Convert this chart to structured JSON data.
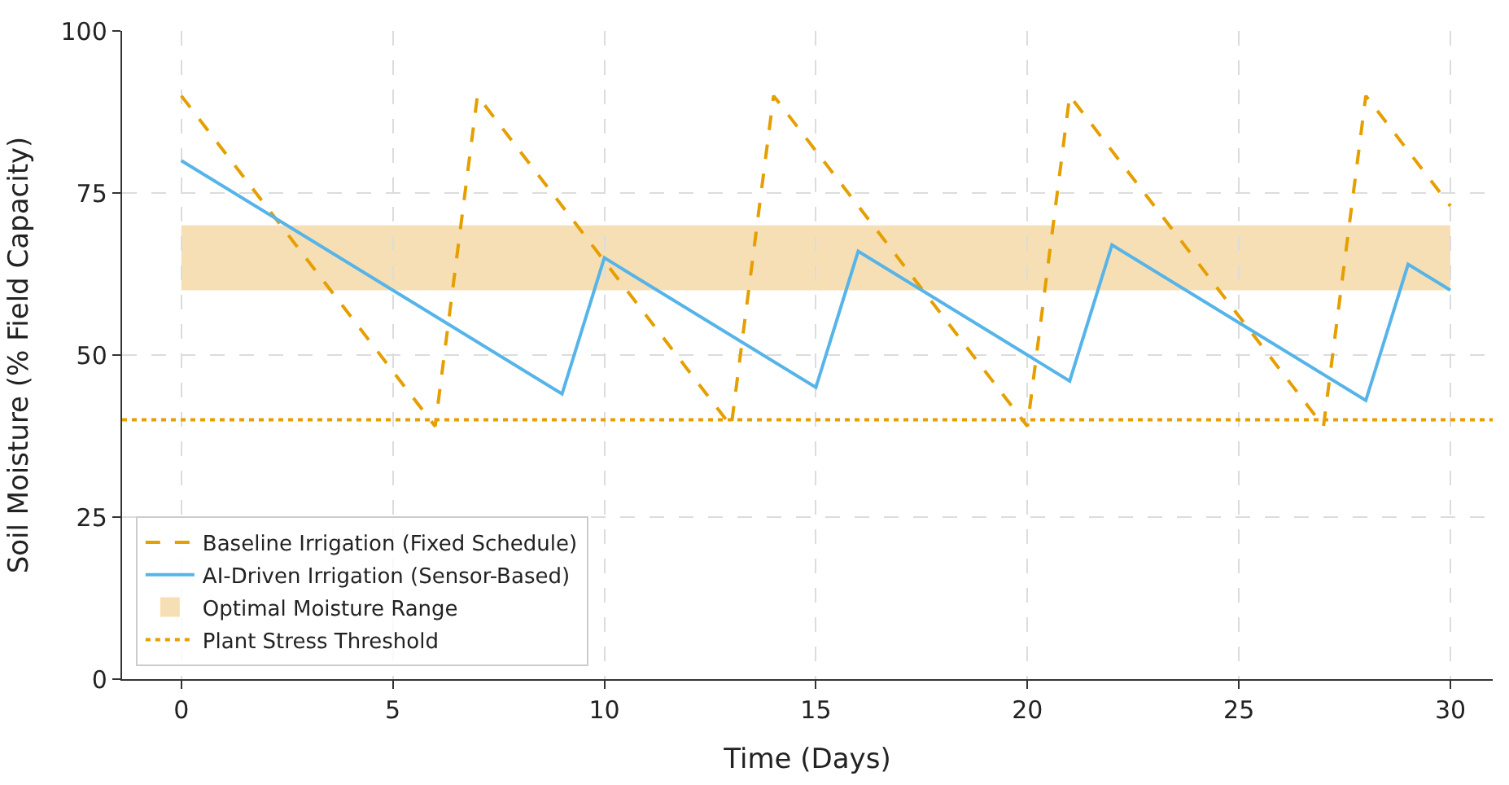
{
  "chart_data": {
    "type": "line",
    "xlabel": "Time (Days)",
    "ylabel": "Soil Moisture (% Field Capacity)",
    "xlim": [
      -1.4,
      31
    ],
    "ylim": [
      0,
      100
    ],
    "xticks": [
      0,
      5,
      10,
      15,
      20,
      25,
      30
    ],
    "yticks": [
      0,
      25,
      50,
      75,
      100
    ],
    "grid": true,
    "legend": "bottom left",
    "marker": "none",
    "series": [
      {
        "name": "Baseline Irrigation (Fixed Schedule)",
        "color": "#e69f00",
        "line_style": "dashed",
        "x": [
          0,
          6,
          7,
          13,
          14,
          20,
          21,
          27,
          28,
          30
        ],
        "values": [
          90,
          39,
          90,
          39,
          90,
          39,
          90,
          39,
          90,
          73
        ]
      },
      {
        "name": "AI-Driven Irrigation (Sensor-Based)",
        "color": "#56b4e9",
        "line_style": "solid",
        "x": [
          0,
          9,
          10,
          15,
          16,
          21,
          22,
          28,
          29,
          30
        ],
        "values": [
          80,
          44,
          65,
          45,
          66,
          46,
          67,
          43,
          64,
          60
        ]
      }
    ],
    "ref_lines": [
      {
        "axis": "y",
        "value": 40,
        "label": "Plant Stress Threshold",
        "color": "#e69f00",
        "line_style": "dotted"
      }
    ],
    "bands": [
      {
        "axis": "y",
        "from": 60,
        "to": 70,
        "label": "Optimal Moisture Range",
        "color": "#f7dfb5"
      }
    ]
  }
}
